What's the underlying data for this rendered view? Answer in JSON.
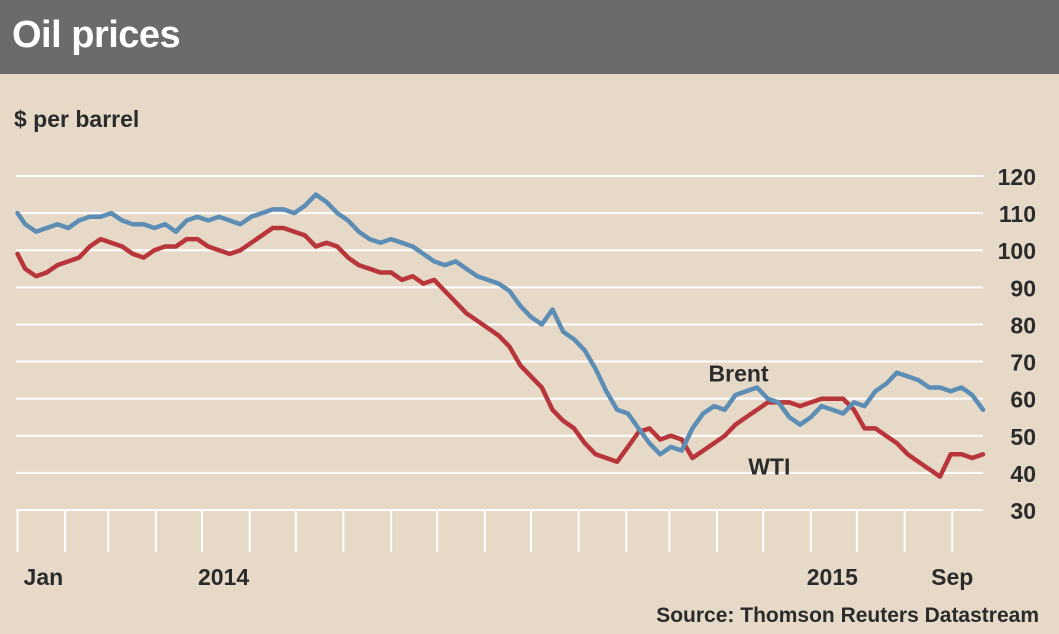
{
  "chart_data": {
    "type": "line",
    "title": "Oil prices",
    "ylabel": "$ per barrel",
    "source": "Source: Thomson Reuters Datastream",
    "ylim": [
      30,
      120
    ],
    "y_ticks": [
      30,
      40,
      50,
      60,
      70,
      80,
      90,
      100,
      110,
      120
    ],
    "x_range": [
      "2013-12-31",
      "2015-09-21"
    ],
    "x_tick_labels": [
      {
        "date": "2014-01-01",
        "label": "Jan"
      },
      {
        "date": "2014-05-15",
        "label": "2014"
      },
      {
        "date": "2015-06-15",
        "label": "2015"
      },
      {
        "date": "2015-09-01",
        "label": "Sep"
      }
    ],
    "x_minor_ticks": [
      "2014-01-01",
      "2014-02-01",
      "2014-03-01",
      "2014-04-01",
      "2014-05-01",
      "2014-06-01",
      "2014-07-01",
      "2014-08-01",
      "2014-09-01",
      "2014-10-01",
      "2014-11-01",
      "2014-12-01",
      "2015-01-01",
      "2015-02-01",
      "2015-03-01",
      "2015-04-01",
      "2015-05-01",
      "2015-06-01",
      "2015-07-01",
      "2015-08-01",
      "2015-09-01"
    ],
    "grid": true,
    "series": [
      {
        "name": "Brent",
        "color": "#5b8db5",
        "label_at": {
          "date": "2015-04-15",
          "value": 67
        },
        "points": [
          [
            "2014-01-01",
            110
          ],
          [
            "2014-01-06",
            107
          ],
          [
            "2014-01-13",
            105
          ],
          [
            "2014-01-20",
            106
          ],
          [
            "2014-01-27",
            107
          ],
          [
            "2014-02-03",
            106
          ],
          [
            "2014-02-10",
            108
          ],
          [
            "2014-02-17",
            109
          ],
          [
            "2014-02-24",
            109
          ],
          [
            "2014-03-03",
            110
          ],
          [
            "2014-03-10",
            108
          ],
          [
            "2014-03-17",
            107
          ],
          [
            "2014-03-24",
            107
          ],
          [
            "2014-03-31",
            106
          ],
          [
            "2014-04-07",
            107
          ],
          [
            "2014-04-14",
            105
          ],
          [
            "2014-04-21",
            108
          ],
          [
            "2014-04-28",
            109
          ],
          [
            "2014-05-05",
            108
          ],
          [
            "2014-05-12",
            109
          ],
          [
            "2014-05-19",
            108
          ],
          [
            "2014-05-26",
            107
          ],
          [
            "2014-06-02",
            109
          ],
          [
            "2014-06-09",
            110
          ],
          [
            "2014-06-16",
            111
          ],
          [
            "2014-06-23",
            111
          ],
          [
            "2014-06-30",
            110
          ],
          [
            "2014-07-07",
            112
          ],
          [
            "2014-07-14",
            115
          ],
          [
            "2014-07-21",
            113
          ],
          [
            "2014-07-28",
            110
          ],
          [
            "2014-08-04",
            108
          ],
          [
            "2014-08-11",
            105
          ],
          [
            "2014-08-18",
            103
          ],
          [
            "2014-08-25",
            102
          ],
          [
            "2014-09-01",
            103
          ],
          [
            "2014-09-08",
            102
          ],
          [
            "2014-09-15",
            101
          ],
          [
            "2014-09-22",
            99
          ],
          [
            "2014-09-29",
            97
          ],
          [
            "2014-10-06",
            96
          ],
          [
            "2014-10-13",
            97
          ],
          [
            "2014-10-20",
            95
          ],
          [
            "2014-10-27",
            93
          ],
          [
            "2014-11-03",
            92
          ],
          [
            "2014-11-10",
            91
          ],
          [
            "2014-11-17",
            89
          ],
          [
            "2014-11-24",
            85
          ],
          [
            "2014-12-01",
            82
          ],
          [
            "2014-12-08",
            80
          ],
          [
            "2014-12-15",
            84
          ],
          [
            "2014-12-22",
            78
          ],
          [
            "2014-12-29",
            76
          ],
          [
            "2015-01-05",
            73
          ],
          [
            "2015-01-12",
            68
          ],
          [
            "2015-01-19",
            62
          ],
          [
            "2015-01-26",
            57
          ],
          [
            "2015-02-02",
            56
          ],
          [
            "2015-02-09",
            52
          ],
          [
            "2015-02-16",
            48
          ],
          [
            "2015-02-23",
            45
          ],
          [
            "2015-03-02",
            47
          ],
          [
            "2015-03-09",
            46
          ],
          [
            "2015-03-16",
            52
          ],
          [
            "2015-03-23",
            56
          ],
          [
            "2015-03-30",
            58
          ],
          [
            "2015-04-06",
            57
          ],
          [
            "2015-04-13",
            61
          ],
          [
            "2015-04-20",
            62
          ],
          [
            "2015-04-27",
            63
          ],
          [
            "2015-05-04",
            60
          ],
          [
            "2015-05-11",
            59
          ],
          [
            "2015-05-18",
            55
          ],
          [
            "2015-05-25",
            53
          ],
          [
            "2015-06-01",
            55
          ],
          [
            "2015-06-08",
            58
          ],
          [
            "2015-06-15",
            57
          ],
          [
            "2015-06-22",
            56
          ],
          [
            "2015-06-29",
            59
          ],
          [
            "2015-07-06",
            58
          ],
          [
            "2015-07-13",
            62
          ],
          [
            "2015-07-20",
            64
          ],
          [
            "2015-07-27",
            67
          ],
          [
            "2015-08-03",
            66
          ],
          [
            "2015-08-10",
            65
          ],
          [
            "2015-08-17",
            63
          ],
          [
            "2015-08-24",
            63
          ],
          [
            "2015-08-31",
            62
          ],
          [
            "2015-09-07",
            63
          ],
          [
            "2015-09-14",
            61
          ],
          [
            "2015-09-21",
            57
          ]
        ]
      },
      {
        "name": "WTI",
        "color": "#b8353a",
        "label_at": {
          "date": "2015-05-05",
          "value": 42
        },
        "points": [
          [
            "2014-01-01",
            99
          ],
          [
            "2014-01-06",
            95
          ],
          [
            "2014-01-13",
            93
          ],
          [
            "2014-01-20",
            94
          ],
          [
            "2014-01-27",
            96
          ],
          [
            "2014-02-03",
            97
          ],
          [
            "2014-02-10",
            98
          ],
          [
            "2014-02-17",
            101
          ],
          [
            "2014-02-24",
            103
          ],
          [
            "2014-03-03",
            102
          ],
          [
            "2014-03-10",
            101
          ],
          [
            "2014-03-17",
            99
          ],
          [
            "2014-03-24",
            98
          ],
          [
            "2014-03-31",
            100
          ],
          [
            "2014-04-07",
            101
          ],
          [
            "2014-04-14",
            101
          ],
          [
            "2014-04-21",
            103
          ],
          [
            "2014-04-28",
            103
          ],
          [
            "2014-05-05",
            101
          ],
          [
            "2014-05-12",
            100
          ],
          [
            "2014-05-19",
            99
          ],
          [
            "2014-05-26",
            100
          ],
          [
            "2014-06-02",
            102
          ],
          [
            "2014-06-09",
            104
          ],
          [
            "2014-06-16",
            106
          ],
          [
            "2014-06-23",
            106
          ],
          [
            "2014-06-30",
            105
          ],
          [
            "2014-07-07",
            104
          ],
          [
            "2014-07-14",
            101
          ],
          [
            "2014-07-21",
            102
          ],
          [
            "2014-07-28",
            101
          ],
          [
            "2014-08-04",
            98
          ],
          [
            "2014-08-11",
            96
          ],
          [
            "2014-08-18",
            95
          ],
          [
            "2014-08-25",
            94
          ],
          [
            "2014-09-01",
            94
          ],
          [
            "2014-09-08",
            92
          ],
          [
            "2014-09-15",
            93
          ],
          [
            "2014-09-22",
            91
          ],
          [
            "2014-09-29",
            92
          ],
          [
            "2014-10-06",
            89
          ],
          [
            "2014-10-13",
            86
          ],
          [
            "2014-10-20",
            83
          ],
          [
            "2014-10-27",
            81
          ],
          [
            "2014-11-03",
            79
          ],
          [
            "2014-11-10",
            77
          ],
          [
            "2014-11-17",
            74
          ],
          [
            "2014-11-24",
            69
          ],
          [
            "2014-12-01",
            66
          ],
          [
            "2014-12-08",
            63
          ],
          [
            "2014-12-15",
            57
          ],
          [
            "2014-12-22",
            54
          ],
          [
            "2014-12-29",
            52
          ],
          [
            "2015-01-05",
            48
          ],
          [
            "2015-01-12",
            45
          ],
          [
            "2015-01-19",
            44
          ],
          [
            "2015-01-26",
            43
          ],
          [
            "2015-02-02",
            47
          ],
          [
            "2015-02-09",
            51
          ],
          [
            "2015-02-16",
            52
          ],
          [
            "2015-02-23",
            49
          ],
          [
            "2015-03-02",
            50
          ],
          [
            "2015-03-09",
            49
          ],
          [
            "2015-03-16",
            44
          ],
          [
            "2015-03-23",
            46
          ],
          [
            "2015-03-30",
            48
          ],
          [
            "2015-04-06",
            50
          ],
          [
            "2015-04-13",
            53
          ],
          [
            "2015-04-20",
            55
          ],
          [
            "2015-04-27",
            57
          ],
          [
            "2015-05-04",
            59
          ],
          [
            "2015-05-11",
            59
          ],
          [
            "2015-05-18",
            59
          ],
          [
            "2015-05-25",
            58
          ],
          [
            "2015-06-01",
            59
          ],
          [
            "2015-06-08",
            60
          ],
          [
            "2015-06-15",
            60
          ],
          [
            "2015-06-22",
            60
          ],
          [
            "2015-06-29",
            57
          ],
          [
            "2015-07-06",
            52
          ],
          [
            "2015-07-13",
            52
          ],
          [
            "2015-07-20",
            50
          ],
          [
            "2015-07-27",
            48
          ],
          [
            "2015-08-03",
            45
          ],
          [
            "2015-08-10",
            43
          ],
          [
            "2015-08-17",
            41
          ],
          [
            "2015-08-24",
            39
          ],
          [
            "2015-08-31",
            45
          ],
          [
            "2015-09-07",
            45
          ],
          [
            "2015-09-14",
            44
          ],
          [
            "2015-09-21",
            45
          ]
        ]
      }
    ]
  }
}
